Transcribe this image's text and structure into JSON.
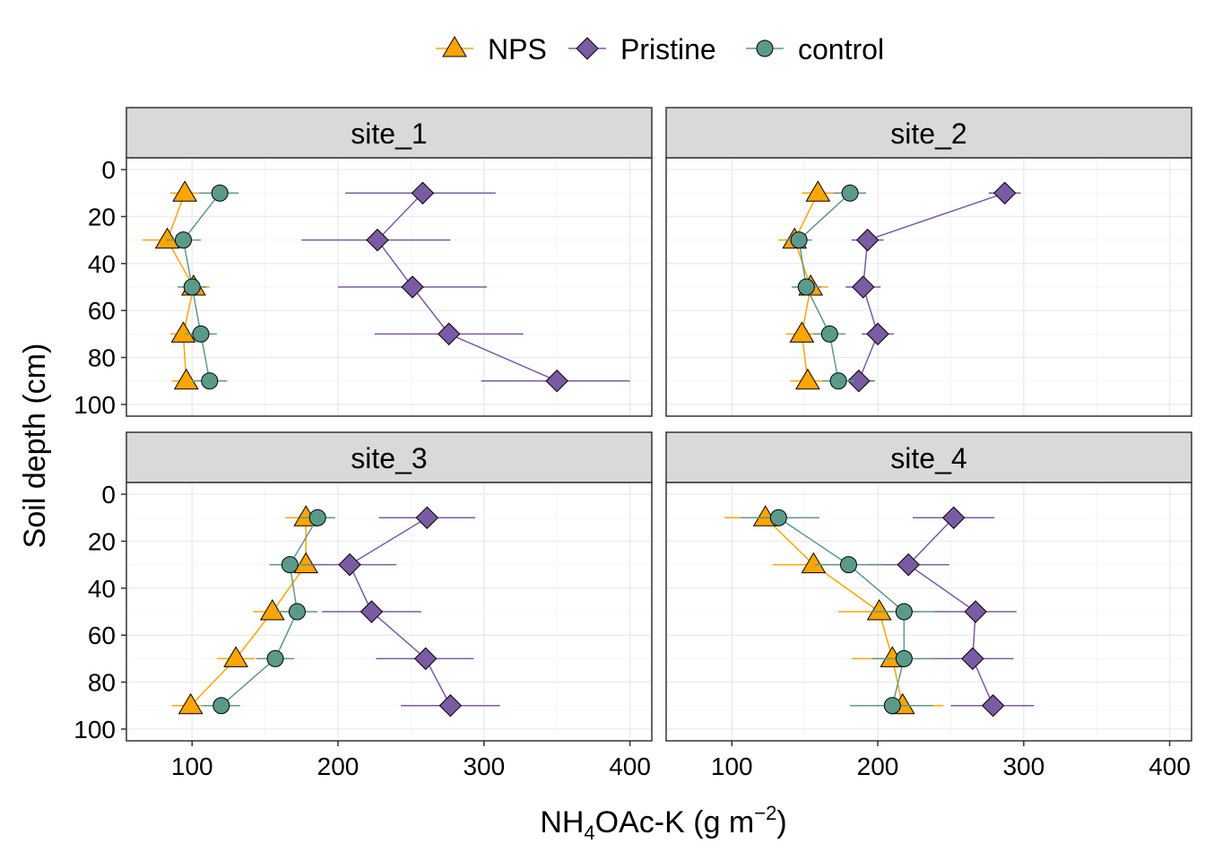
{
  "chart_data": {
    "type": "line",
    "xlabel": {
      "main": "NH",
      "sub": "4",
      "rest": "OAc-K (g m",
      "sup": "−2",
      "close": ")"
    },
    "ylabel": "Soil depth (cm)",
    "xlim": [
      55,
      415
    ],
    "ylim": [
      105,
      -5
    ],
    "x_ticks": [
      100,
      200,
      300,
      400
    ],
    "y_ticks": [
      0,
      20,
      40,
      60,
      80,
      100
    ],
    "grid": true,
    "legend_position": "top",
    "legend": [
      {
        "name": "NPS",
        "color": "#FFA500",
        "marker": "triangle"
      },
      {
        "name": "Pristine",
        "color": "#7B5BA3",
        "marker": "diamond"
      },
      {
        "name": "control",
        "color": "#5B9A8B",
        "marker": "circle"
      }
    ],
    "panels": [
      {
        "title": "site_1",
        "series": [
          {
            "name": "NPS",
            "points": [
              {
                "depth": 10,
                "x": 95,
                "lo": 85,
                "hi": 107
              },
              {
                "depth": 30,
                "x": 83,
                "lo": 66,
                "hi": 100
              },
              {
                "depth": 50,
                "x": 101,
                "lo": 93,
                "hi": 112
              },
              {
                "depth": 70,
                "x": 94,
                "lo": 85,
                "hi": 104
              },
              {
                "depth": 90,
                "x": 96,
                "lo": 86,
                "hi": 106
              }
            ]
          },
          {
            "name": "Pristine",
            "points": [
              {
                "depth": 10,
                "x": 258,
                "lo": 205,
                "hi": 308
              },
              {
                "depth": 30,
                "x": 227,
                "lo": 175,
                "hi": 277
              },
              {
                "depth": 50,
                "x": 251,
                "lo": 200,
                "hi": 302
              },
              {
                "depth": 70,
                "x": 276,
                "lo": 225,
                "hi": 327
              },
              {
                "depth": 90,
                "x": 350,
                "lo": 298,
                "hi": 400
              }
            ]
          },
          {
            "name": "control",
            "points": [
              {
                "depth": 10,
                "x": 119,
                "lo": 105,
                "hi": 132
              },
              {
                "depth": 30,
                "x": 94,
                "lo": 82,
                "hi": 106
              },
              {
                "depth": 50,
                "x": 100,
                "lo": 90,
                "hi": 110
              },
              {
                "depth": 70,
                "x": 106,
                "lo": 95,
                "hi": 117
              },
              {
                "depth": 90,
                "x": 112,
                "lo": 100,
                "hi": 124
              }
            ]
          }
        ]
      },
      {
        "title": "site_2",
        "series": [
          {
            "name": "NPS",
            "points": [
              {
                "depth": 10,
                "x": 159,
                "lo": 148,
                "hi": 171
              },
              {
                "depth": 30,
                "x": 143,
                "lo": 132,
                "hi": 154
              },
              {
                "depth": 50,
                "x": 154,
                "lo": 142,
                "hi": 166
              },
              {
                "depth": 70,
                "x": 148,
                "lo": 137,
                "hi": 160
              },
              {
                "depth": 90,
                "x": 152,
                "lo": 140,
                "hi": 164
              }
            ]
          },
          {
            "name": "Pristine",
            "points": [
              {
                "depth": 10,
                "x": 287,
                "lo": 276,
                "hi": 298
              },
              {
                "depth": 30,
                "x": 193,
                "lo": 182,
                "hi": 204
              },
              {
                "depth": 50,
                "x": 190,
                "lo": 178,
                "hi": 202
              },
              {
                "depth": 70,
                "x": 200,
                "lo": 189,
                "hi": 211
              },
              {
                "depth": 90,
                "x": 187,
                "lo": 176,
                "hi": 198
              }
            ]
          },
          {
            "name": "control",
            "points": [
              {
                "depth": 10,
                "x": 181,
                "lo": 170,
                "hi": 192
              },
              {
                "depth": 30,
                "x": 146,
                "lo": 137,
                "hi": 155
              },
              {
                "depth": 50,
                "x": 151,
                "lo": 141,
                "hi": 161
              },
              {
                "depth": 70,
                "x": 167,
                "lo": 156,
                "hi": 178
              },
              {
                "depth": 90,
                "x": 173,
                "lo": 162,
                "hi": 184
              }
            ]
          }
        ]
      },
      {
        "title": "site_3",
        "series": [
          {
            "name": "NPS",
            "points": [
              {
                "depth": 10,
                "x": 178,
                "lo": 164,
                "hi": 191
              },
              {
                "depth": 30,
                "x": 178,
                "lo": 164,
                "hi": 191
              },
              {
                "depth": 50,
                "x": 155,
                "lo": 142,
                "hi": 168
              },
              {
                "depth": 70,
                "x": 130,
                "lo": 117,
                "hi": 143
              },
              {
                "depth": 90,
                "x": 99,
                "lo": 86,
                "hi": 112
              }
            ]
          },
          {
            "name": "Pristine",
            "points": [
              {
                "depth": 10,
                "x": 261,
                "lo": 228,
                "hi": 294
              },
              {
                "depth": 30,
                "x": 208,
                "lo": 176,
                "hi": 240
              },
              {
                "depth": 50,
                "x": 223,
                "lo": 189,
                "hi": 257
              },
              {
                "depth": 70,
                "x": 260,
                "lo": 226,
                "hi": 293
              },
              {
                "depth": 90,
                "x": 277,
                "lo": 243,
                "hi": 311
              }
            ]
          },
          {
            "name": "control",
            "points": [
              {
                "depth": 10,
                "x": 186,
                "lo": 174,
                "hi": 198
              },
              {
                "depth": 30,
                "x": 167,
                "lo": 153,
                "hi": 181
              },
              {
                "depth": 50,
                "x": 172,
                "lo": 158,
                "hi": 186
              },
              {
                "depth": 70,
                "x": 157,
                "lo": 144,
                "hi": 170
              },
              {
                "depth": 90,
                "x": 120,
                "lo": 107,
                "hi": 133
              }
            ]
          }
        ]
      },
      {
        "title": "site_4",
        "series": [
          {
            "name": "NPS",
            "points": [
              {
                "depth": 10,
                "x": 123,
                "lo": 95,
                "hi": 151
              },
              {
                "depth": 30,
                "x": 156,
                "lo": 128,
                "hi": 184
              },
              {
                "depth": 50,
                "x": 201,
                "lo": 173,
                "hi": 229
              },
              {
                "depth": 70,
                "x": 210,
                "lo": 182,
                "hi": 238
              },
              {
                "depth": 90,
                "x": 217,
                "lo": 189,
                "hi": 245
              }
            ]
          },
          {
            "name": "Pristine",
            "points": [
              {
                "depth": 10,
                "x": 252,
                "lo": 224,
                "hi": 280
              },
              {
                "depth": 30,
                "x": 221,
                "lo": 193,
                "hi": 249
              },
              {
                "depth": 50,
                "x": 267,
                "lo": 239,
                "hi": 295
              },
              {
                "depth": 70,
                "x": 265,
                "lo": 237,
                "hi": 293
              },
              {
                "depth": 90,
                "x": 279,
                "lo": 250,
                "hi": 307
              }
            ]
          },
          {
            "name": "control",
            "points": [
              {
                "depth": 10,
                "x": 132,
                "lo": 106,
                "hi": 160
              },
              {
                "depth": 30,
                "x": 180,
                "lo": 157,
                "hi": 203
              },
              {
                "depth": 50,
                "x": 218,
                "lo": 196,
                "hi": 241
              },
              {
                "depth": 70,
                "x": 218,
                "lo": 196,
                "hi": 241
              },
              {
                "depth": 90,
                "x": 210,
                "lo": 181,
                "hi": 238
              }
            ]
          }
        ]
      }
    ]
  }
}
